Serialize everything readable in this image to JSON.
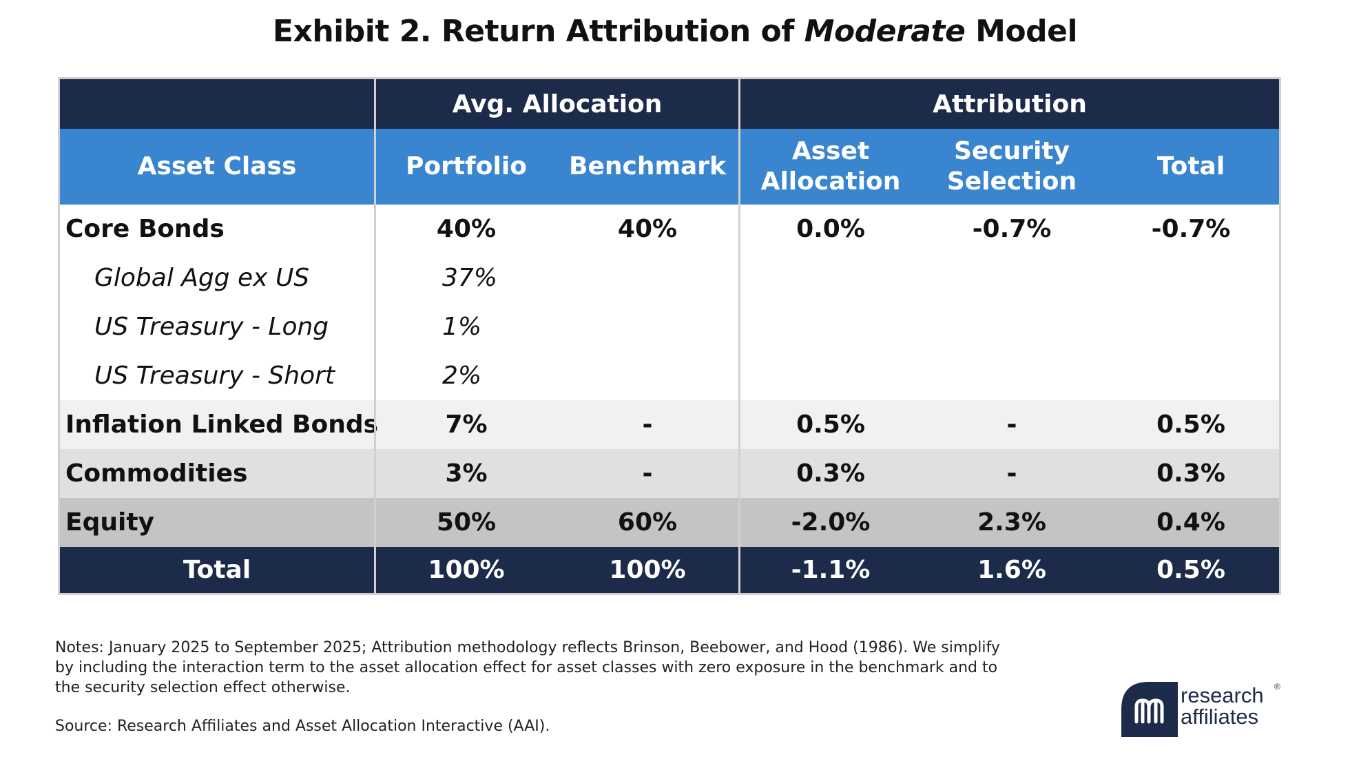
{
  "title": {
    "prefix": "Exhibit 2. Return Attribution of ",
    "italic": "Moderate",
    "suffix": " Model"
  },
  "table": {
    "group_headers": {
      "avg_allocation": "Avg. Allocation",
      "attribution": "Attribution"
    },
    "columns": {
      "asset_class": "Asset Class",
      "portfolio": "Portfolio",
      "benchmark": "Benchmark",
      "asset_allocation_line1": "Asset",
      "asset_allocation_line2": "Allocation",
      "security_selection_line1": "Security",
      "security_selection_line2": "Selection",
      "total": "Total"
    },
    "rows": [
      {
        "asset_class": "Core Bonds",
        "portfolio": "40%",
        "benchmark": "40%",
        "asset_allocation": "0.0%",
        "security_selection": "-0.7%",
        "total": "-0.7%"
      },
      {
        "asset_class": "Global Agg ex US",
        "portfolio": "37%"
      },
      {
        "asset_class": "US Treasury - Long",
        "portfolio": "1%"
      },
      {
        "asset_class": "US Treasury - Short",
        "portfolio": "2%"
      },
      {
        "asset_class": "Inflation Linked Bonds",
        "portfolio": "7%",
        "benchmark": "-",
        "asset_allocation": "0.5%",
        "security_selection": "-",
        "total": "0.5%"
      },
      {
        "asset_class": "Commodities",
        "portfolio": "3%",
        "benchmark": "-",
        "asset_allocation": "0.3%",
        "security_selection": "-",
        "total": "0.3%"
      },
      {
        "asset_class": "Equity",
        "portfolio": "50%",
        "benchmark": "60%",
        "asset_allocation": "-2.0%",
        "security_selection": "2.3%",
        "total": "0.4%"
      }
    ],
    "total_row": {
      "asset_class": "Total",
      "portfolio": "100%",
      "benchmark": "100%",
      "asset_allocation": "-1.1%",
      "security_selection": "1.6%",
      "total": "0.5%"
    }
  },
  "notes": "Notes: January 2025 to September 2025; Attribution methodology reflects Brinson, Beebower, and Hood (1986). We simplify by including the interaction term to the asset allocation effect for asset classes with zero exposure in the benchmark and to the security selection effect otherwise.",
  "source": "Source: Research Affiliates and Asset Allocation Interactive (AAI).",
  "logo": {
    "line1": "research",
    "line2": "affiliates",
    "registered": "®",
    "color": "#1d2b4a"
  },
  "colors": {
    "header_dark": "#1d2b4a",
    "header_blue": "#3a85cf",
    "row_light": "#f1f1f1",
    "row_mid": "#e0e0e0",
    "row_dark": "#c4c4c4"
  }
}
